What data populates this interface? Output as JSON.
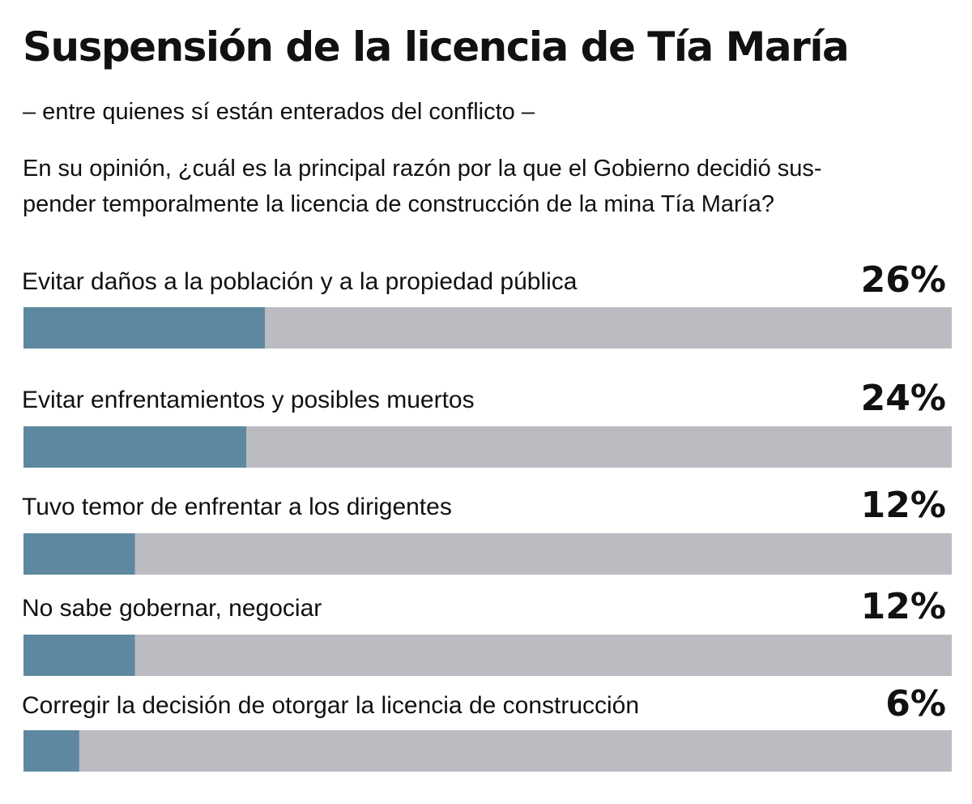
{
  "header": {
    "title": "Suspensión de la licencia de Tía María",
    "subtitle": "– entre quienes sí están enterados del conflicto –",
    "question_line1": "En su opinión, ¿cuál es la principal razón por la que el Gobierno decidió sus-",
    "question_line2": "pender temporalmente la licencia de construcción de la mina Tía María?"
  },
  "colors": {
    "bar_fill": "#5e88a0",
    "bar_track": "#bbbcc1"
  },
  "chart_data": {
    "type": "bar",
    "orientation": "horizontal",
    "categories": [
      "Evitar daños a la población y a la propiedad pública",
      "Evitar enfrentamientos y posibles muertos",
      "Tuvo temor de enfrentar a los dirigentes",
      "No sabe gobernar, negociar",
      "Corregir la decisión de otorgar la licencia de construcción"
    ],
    "values": [
      26,
      24,
      12,
      12,
      6
    ],
    "value_labels": [
      "26%",
      "24%",
      "12%",
      "12%",
      "6%"
    ],
    "xlim": [
      0,
      100
    ],
    "unit": "%",
    "grid": false,
    "legend": "none"
  }
}
